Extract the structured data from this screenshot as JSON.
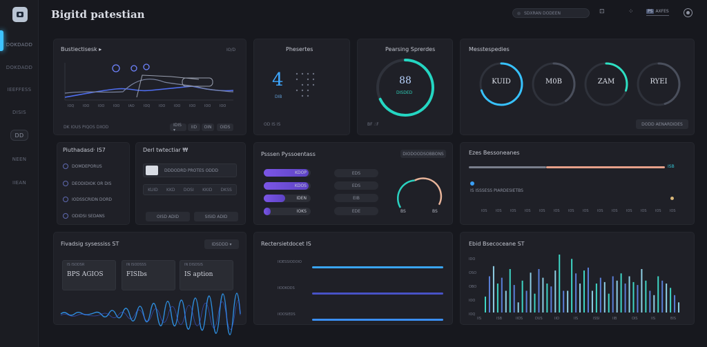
{
  "app": {
    "title": "Bigitd patestian"
  },
  "sidebar": {
    "items": [
      {
        "label": "DOKDADD"
      },
      {
        "label": "DOKDADD"
      },
      {
        "label": "IEEFFESS"
      },
      {
        "label": "DISIS"
      },
      {
        "label": "DD"
      },
      {
        "label": "NEEN"
      },
      {
        "label": "IIEAN"
      }
    ]
  },
  "topbar": {
    "search_placeholder": "SDXRAN DODEEN",
    "badge": "PS",
    "badge_text": "AXFES",
    "icon1": "⊡",
    "icon2": "⁘"
  },
  "card1": {
    "title": "Bustiectisesk ▸",
    "sub": "IO/D",
    "ticks": [
      "IOQ",
      "IOO",
      "IOO",
      "IOO",
      "IAO",
      "IOQ",
      "IOO",
      "IOO",
      "IOO",
      "IOO",
      "IOO"
    ],
    "footer_left": "DK  IOUS PIQOS DXOD",
    "chips": [
      "IDIS ▾",
      "IID",
      "OIN",
      "OIDS"
    ]
  },
  "card2": {
    "title": "Phesertes",
    "value": "4",
    "sub": "DIB",
    "footer": "OD  IS  IS"
  },
  "card3": {
    "title": "Pearsing Sprerdes",
    "value": "88",
    "sub": "DISDED",
    "footer": "BF  ∴F",
    "percent": 68,
    "color": "#24d6c2"
  },
  "card4": {
    "title": "Messtespedies",
    "rings": [
      {
        "label": "KUID",
        "percent": 70,
        "color": "#37c2ff"
      },
      {
        "label": "M0B",
        "percent": 40,
        "color": "#4a4f5c"
      },
      {
        "label": "ZAM",
        "percent": 30,
        "color": "#2de0c3"
      },
      {
        "label": "RYEI",
        "percent": 45,
        "color": "#4a4f5c"
      }
    ],
    "button": "DODD AENARDIDES"
  },
  "card5": {
    "title": "Piuthadasd·  IS7",
    "items": [
      "DOMDEPORUS",
      "DEODIDIOK OR DIS",
      "IODSSCRIDN DORD",
      "ODIDSI SEDANS"
    ]
  },
  "card6": {
    "title": "Derl twtectiar  ₩",
    "row1": "DDDODRD PROTES ODDD",
    "row2": [
      "KUID",
      "KKD",
      "DOSI",
      "KKID",
      "DKSS"
    ],
    "buttons": [
      "OISD ADID",
      "SISID ADID"
    ]
  },
  "card7": {
    "title": "Psssen Pyssoentass",
    "pill": "DIODOODSOBBONS",
    "bars": [
      {
        "label": "KDOP",
        "fill": 0.95
      },
      {
        "label": "KDOS",
        "fill": 0.95
      },
      {
        "label": "IDEN",
        "fill": 0.45
      },
      {
        "label": "IOKS",
        "fill": 0.15
      }
    ],
    "chips": [
      "EDS",
      "EDS",
      "EIB",
      "EDE"
    ],
    "gauge_labels": [
      "BS",
      "BS"
    ],
    "gauge_percent": 62,
    "gauge_colors": [
      "#2ad1c0",
      "#e8b49a"
    ]
  },
  "card8": {
    "title": "Ezes Bessoneanes",
    "bar_value": "ISB",
    "legend": "IS  ISSSESS PIARDESIETBS",
    "ticks": [
      "IOS",
      "IOS",
      "IOS",
      "IOS",
      "IOS",
      "IOS",
      "IOS",
      "IOS",
      "IOS",
      "IOS",
      "IOS",
      "IOS",
      "IOS",
      "IOS"
    ],
    "colors": [
      "#7a7f8d",
      "#e7a18a"
    ]
  },
  "card9": {
    "title": "Fivadsig sysessiss  ST",
    "button": "IDSDDD ▾",
    "tiles": [
      {
        "label": "IS ISODSR",
        "value": "BPS AGIOS"
      },
      {
        "label": "IN ISODSSS",
        "value": "FISIbs"
      },
      {
        "label": "IN DISDSIS",
        "value": "IS aption"
      }
    ]
  },
  "card10": {
    "title": "Rectersietdocet  IS",
    "rows": [
      {
        "label": "IIOESSIODOIO",
        "fill": 1.0,
        "color": "#3aa5f2"
      },
      {
        "label": "IIOOKODS",
        "fill": 1.0,
        "color": "#4852c6"
      },
      {
        "label": "IIOOSIEDS",
        "fill": 1.0,
        "color": "#3a8ef2"
      }
    ]
  },
  "card11": {
    "title": "Ebid Bsecoceane  ST",
    "y_ticks": [
      "IDO",
      "OSO",
      "OBO",
      "IOO",
      "IOQ"
    ],
    "x_ticks": [
      "IIS",
      "ISB",
      "IIOS",
      "DUS",
      "IIO",
      "IIS",
      "ISSI",
      "IIB",
      "OIS",
      "IIS",
      "BIS"
    ],
    "chart_data": {
      "type": "bar",
      "series": [
        {
          "values": [
            22,
            50,
            64,
            40,
            48,
            30,
            60,
            38,
            14,
            44,
            30,
            55,
            26,
            60,
            48,
            40,
            36,
            58,
            80,
            30,
            30,
            74,
            54,
            40,
            58,
            62,
            30,
            40,
            48,
            42,
            26,
            50,
            44,
            54,
            40,
            50,
            42,
            38,
            60,
            44,
            30,
            24,
            50,
            44,
            40,
            34,
            24,
            14
          ]
        }
      ]
    }
  }
}
